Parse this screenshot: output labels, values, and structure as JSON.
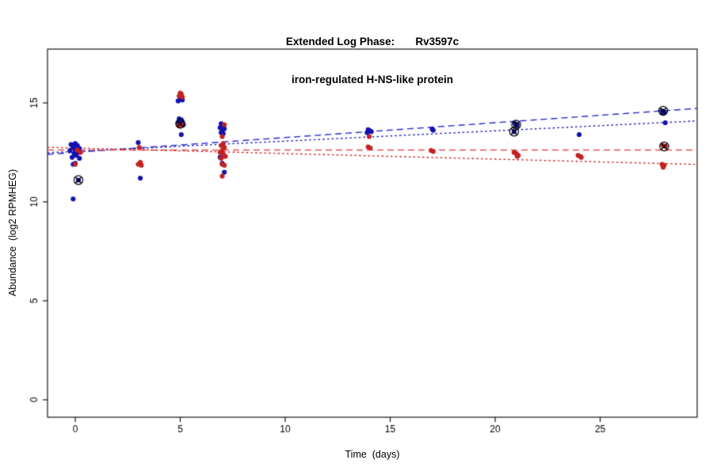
{
  "chart_data": {
    "type": "scatter",
    "title": "Extended Log Phase:       Rv3597c",
    "subtitle": "iron-regulated H-NS-like protein",
    "xlabel": "Time  (days)",
    "ylabel": "Abundance  (log2 RPMHEG)",
    "xlim": [
      -1.32,
      29.62
    ],
    "ylim": [
      -0.88,
      17.72
    ],
    "xticks": [
      0,
      5,
      10,
      15,
      20,
      25
    ],
    "yticks": [
      0,
      5,
      10,
      15
    ],
    "grid": false,
    "legend": null,
    "series": [
      {
        "name": "blue",
        "color": "#1212B0",
        "points": [
          [
            -0.2,
            12.9
          ],
          [
            0.0,
            12.95
          ],
          [
            0.1,
            12.85
          ],
          [
            -0.1,
            12.75
          ],
          [
            0.2,
            12.7
          ],
          [
            0.0,
            12.65
          ],
          [
            -0.25,
            12.6
          ],
          [
            0.1,
            12.55
          ],
          [
            0.15,
            12.5
          ],
          [
            -0.05,
            12.45
          ],
          [
            0.05,
            12.35
          ],
          [
            -0.15,
            12.25
          ],
          [
            0.2,
            12.2
          ],
          [
            0.0,
            11.95
          ],
          [
            -0.1,
            11.9
          ],
          [
            0.15,
            11.1
          ],
          [
            -0.1,
            10.15
          ],
          [
            3.0,
            13.0
          ],
          [
            3.1,
            11.2
          ],
          [
            5.0,
            15.2
          ],
          [
            5.1,
            15.15
          ],
          [
            4.9,
            15.1
          ],
          [
            4.95,
            14.2
          ],
          [
            5.05,
            14.15
          ],
          [
            5.0,
            14.1
          ],
          [
            5.1,
            14.05
          ],
          [
            4.9,
            14.0
          ],
          [
            5.0,
            13.95
          ],
          [
            5.15,
            13.9
          ],
          [
            5.05,
            13.4
          ],
          [
            6.95,
            13.95
          ],
          [
            7.0,
            13.9
          ],
          [
            7.05,
            13.85
          ],
          [
            6.9,
            13.75
          ],
          [
            7.1,
            13.7
          ],
          [
            7.0,
            13.6
          ],
          [
            6.95,
            13.5
          ],
          [
            7.05,
            13.45
          ],
          [
            7.05,
            12.35
          ],
          [
            6.9,
            12.25
          ],
          [
            7.0,
            11.95
          ],
          [
            7.1,
            11.5
          ],
          [
            13.95,
            13.65
          ],
          [
            14.0,
            13.6
          ],
          [
            14.05,
            13.58
          ],
          [
            14.1,
            13.55
          ],
          [
            13.9,
            13.5
          ],
          [
            17.0,
            13.68
          ],
          [
            17.05,
            13.62
          ],
          [
            20.95,
            13.95
          ],
          [
            21.05,
            13.9
          ],
          [
            21.0,
            13.85
          ],
          [
            20.9,
            13.55
          ],
          [
            24.0,
            13.4
          ],
          [
            27.95,
            14.6
          ],
          [
            28.05,
            14.55
          ],
          [
            28.0,
            14.5
          ],
          [
            28.1,
            14.0
          ]
        ]
      },
      {
        "name": "red",
        "color": "#C42222",
        "points": [
          [
            0.1,
            12.62
          ],
          [
            0.25,
            12.5
          ],
          [
            0.0,
            11.9
          ],
          [
            3.05,
            12.75
          ],
          [
            3.1,
            12.0
          ],
          [
            3.0,
            11.9
          ],
          [
            3.15,
            11.85
          ],
          [
            5.0,
            15.5
          ],
          [
            5.05,
            15.45
          ],
          [
            4.95,
            15.35
          ],
          [
            5.1,
            15.3
          ],
          [
            5.05,
            13.9
          ],
          [
            4.95,
            13.85
          ],
          [
            7.1,
            13.9
          ],
          [
            7.0,
            13.3
          ],
          [
            7.05,
            12.95
          ],
          [
            6.95,
            12.85
          ],
          [
            7.1,
            12.75
          ],
          [
            7.0,
            12.6
          ],
          [
            6.9,
            12.5
          ],
          [
            7.05,
            12.4
          ],
          [
            7.15,
            12.3
          ],
          [
            6.95,
            12.2
          ],
          [
            7.0,
            11.9
          ],
          [
            7.1,
            11.85
          ],
          [
            7.0,
            11.3
          ],
          [
            14.0,
            13.3
          ],
          [
            13.95,
            12.78
          ],
          [
            14.05,
            12.72
          ],
          [
            16.95,
            12.6
          ],
          [
            17.05,
            12.55
          ],
          [
            20.9,
            12.5
          ],
          [
            21.0,
            12.45
          ],
          [
            21.1,
            12.35
          ],
          [
            21.05,
            12.3
          ],
          [
            23.95,
            12.35
          ],
          [
            24.05,
            12.3
          ],
          [
            24.1,
            12.25
          ],
          [
            28.0,
            12.85
          ],
          [
            28.1,
            12.8
          ],
          [
            27.95,
            11.9
          ],
          [
            28.05,
            11.85
          ],
          [
            28.0,
            11.75
          ]
        ]
      }
    ],
    "outlined_points": [
      [
        0.15,
        11.1
      ],
      [
        5.0,
        13.95
      ],
      [
        21.0,
        13.9
      ],
      [
        20.9,
        13.55
      ],
      [
        28.0,
        14.6
      ],
      [
        28.05,
        12.8
      ]
    ],
    "trend_lines": [
      {
        "series": "blue",
        "style": "dashed",
        "color": "#2A2AD4",
        "intercept": 12.5,
        "slope": 0.075
      },
      {
        "series": "blue",
        "style": "dotted",
        "color": "#1A1AC0",
        "intercept": 12.55,
        "slope": 0.052
      },
      {
        "series": "red",
        "style": "dashed",
        "color": "#E05555",
        "intercept": 12.62,
        "slope": 0.0
      },
      {
        "series": "red",
        "style": "dotted",
        "color": "#D02020",
        "intercept": 12.72,
        "slope": -0.028
      }
    ],
    "outline_color": "#000000"
  }
}
